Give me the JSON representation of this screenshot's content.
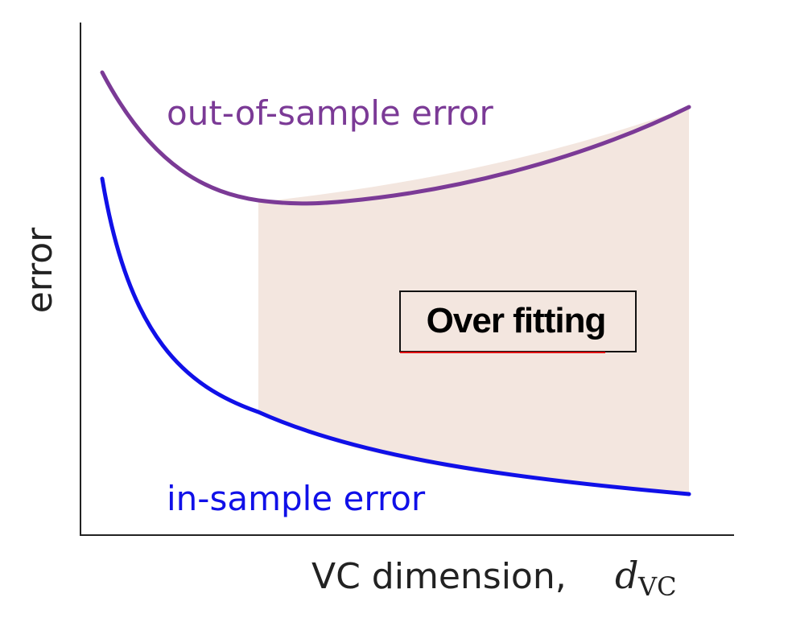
{
  "ylabel": "error",
  "xlabel": "VC dimension,",
  "xlabel_symbol": "d",
  "xlabel_subscript": "VC",
  "curves": {
    "out_of_sample": {
      "label": "out-of-sample error",
      "color": "#7b3a96"
    },
    "in_sample": {
      "label": "in-sample error",
      "color": "#1010e8"
    }
  },
  "region": {
    "label": "Over fitting",
    "fill": "#f3e6df",
    "underline_color": "#e01010"
  }
}
